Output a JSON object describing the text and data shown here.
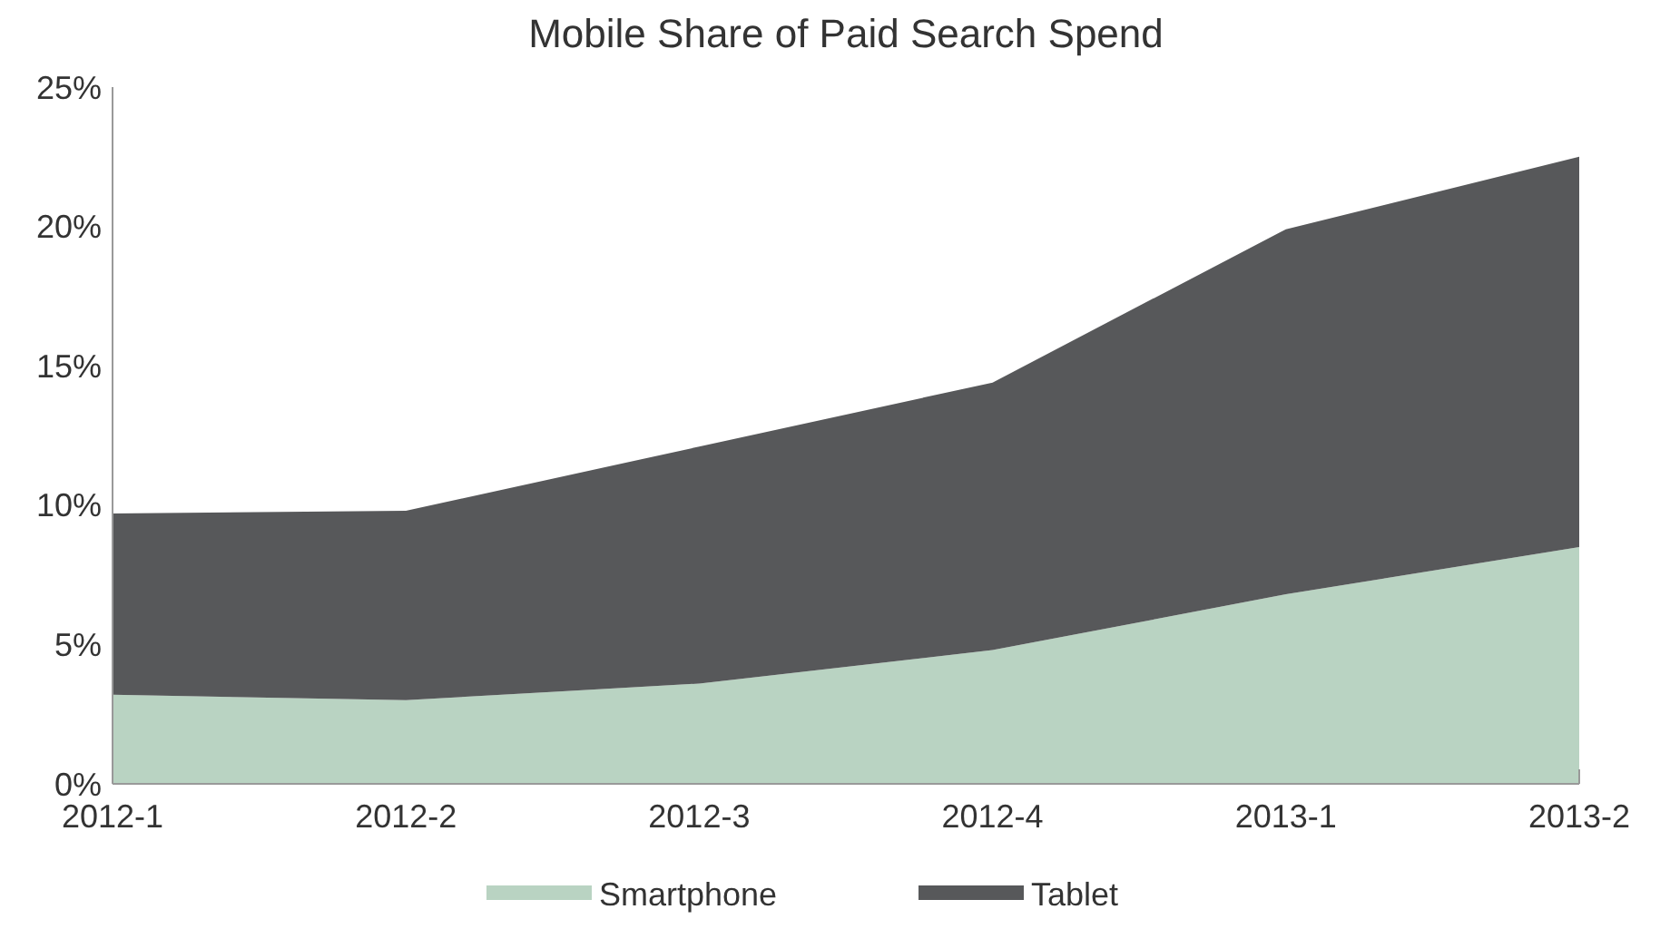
{
  "chart_data": {
    "type": "area",
    "title": "Mobile Share of Paid Search Spend",
    "categories": [
      "2012-1",
      "2012-2",
      "2012-3",
      "2012-4",
      "2013-1",
      "2013-2"
    ],
    "stacked": true,
    "series": [
      {
        "name": "Smartphone",
        "color": "#b9d3c2",
        "values": [
          3.2,
          3.0,
          3.6,
          4.8,
          6.8,
          8.5
        ]
      },
      {
        "name": "Tablet",
        "color": "#57585a",
        "values": [
          6.5,
          6.8,
          8.5,
          9.6,
          13.1,
          14.0
        ]
      }
    ],
    "ylim": [
      0,
      25
    ],
    "yticks": [
      {
        "value": 0,
        "label": "0%"
      },
      {
        "value": 5,
        "label": "5%"
      },
      {
        "value": 10,
        "label": "10%"
      },
      {
        "value": 15,
        "label": "15%"
      },
      {
        "value": 20,
        "label": "20%"
      },
      {
        "value": 25,
        "label": "25%"
      }
    ],
    "grid": false,
    "legend": "bottom"
  }
}
